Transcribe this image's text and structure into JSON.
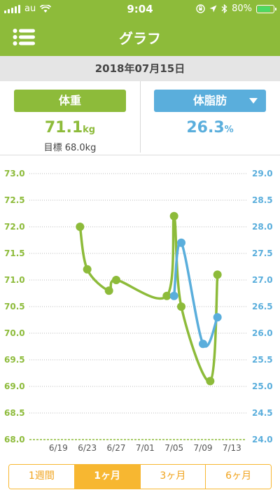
{
  "status_bar": {
    "carrier": "au",
    "time": "9:04",
    "battery_percent": "80%",
    "battery_level": 0.8,
    "icons": [
      "signal-icon",
      "wifi-icon",
      "orientation-lock-icon",
      "location-icon",
      "bluetooth-icon",
      "battery-icon"
    ]
  },
  "header": {
    "title": "グラフ",
    "menu_icon": "menu-icon"
  },
  "date_bar": {
    "date": "2018年07月15日"
  },
  "summary": {
    "weight": {
      "label": "体重",
      "value": "71.1",
      "unit": "kg",
      "target": "目標 68.0kg",
      "color": "#8dbb3a"
    },
    "body_fat": {
      "label": "体脂肪",
      "value": "26.3",
      "unit": "%",
      "dropdown_icon": "caret-down-icon",
      "color": "#5aaedc"
    }
  },
  "chart_data": {
    "type": "line",
    "x_tick_labels": [
      "6/19",
      "6/23",
      "6/27",
      "7/01",
      "7/05",
      "7/09",
      "7/13"
    ],
    "x_range_days_from_6_15": [
      0,
      30
    ],
    "y_left": {
      "range": [
        68.0,
        73.0
      ],
      "ticks": [
        "73.0",
        "72.5",
        "72.0",
        "71.5",
        "71.0",
        "70.5",
        "70.0",
        "69.5",
        "69.0",
        "68.5",
        "68.0"
      ],
      "color": "#8dbb3a"
    },
    "y_right": {
      "range": [
        24.0,
        29.0
      ],
      "ticks": [
        "29.0",
        "28.5",
        "28.0",
        "27.5",
        "27.0",
        "26.5",
        "26.0",
        "25.5",
        "25.0",
        "24.5",
        "24.0"
      ],
      "color": "#5aaedc"
    },
    "grid": true,
    "series": [
      {
        "axis": "left",
        "color": "#8dbb3a",
        "x": [
          "6/22",
          "6/23",
          "6/26",
          "6/27",
          "7/04",
          "7/05",
          "7/06",
          "7/10",
          "7/11"
        ],
        "values": [
          72.0,
          71.2,
          70.8,
          71.0,
          70.7,
          72.2,
          70.5,
          69.1,
          71.1
        ]
      },
      {
        "axis": "right",
        "color": "#5aaedc",
        "x": [
          "7/05",
          "7/06",
          "7/09",
          "7/11"
        ],
        "values": [
          26.7,
          27.7,
          25.8,
          26.3
        ]
      }
    ]
  },
  "period_tabs": [
    {
      "label": "1週間",
      "active": false
    },
    {
      "label": "1ヶ月",
      "active": true
    },
    {
      "label": "3ヶ月",
      "active": false
    },
    {
      "label": "6ヶ月",
      "active": false
    }
  ]
}
